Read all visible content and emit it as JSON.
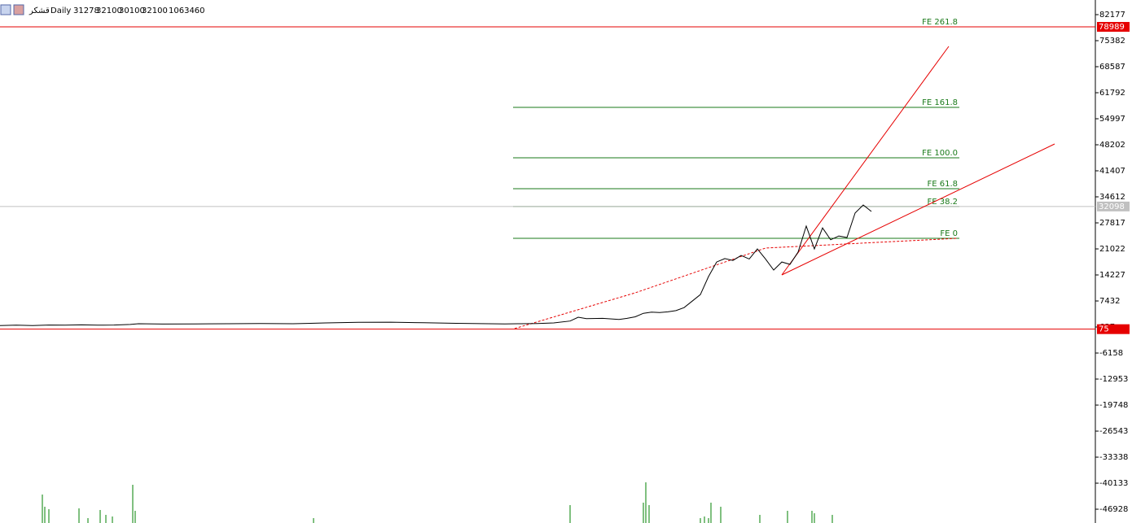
{
  "chart_data": {
    "type": "line",
    "symbol": "قشکر",
    "timeframe": "Daily",
    "ohlc": [
      31278,
      32100,
      30100,
      32100
    ],
    "tick_volume": 1063460,
    "color": "#000000",
    "xlim": [
      0,
      134.5
    ],
    "ylim": [
      -50530,
      85999
    ],
    "yticks": [
      82177,
      75382,
      68587,
      61792,
      54997,
      48202,
      41407,
      34612,
      27817,
      21022,
      14227,
      7432,
      637,
      -6158,
      -12953,
      -19748,
      -26543,
      -33338,
      -40133,
      -46928
    ],
    "x": [
      0,
      2,
      4,
      6,
      8,
      10,
      12,
      14,
      16,
      17,
      20,
      24,
      28,
      32,
      36,
      40,
      44,
      48,
      52,
      56,
      60,
      62,
      64,
      66,
      68,
      70,
      71,
      72,
      74,
      76,
      77,
      78,
      79,
      80,
      81,
      82,
      83,
      84,
      85,
      86,
      87,
      88,
      89,
      90,
      91,
      92,
      93,
      94,
      95,
      96,
      97,
      98,
      99,
      100,
      101,
      102,
      103,
      104,
      105,
      106,
      107
    ],
    "values": [
      1000,
      1100,
      1000,
      1150,
      1100,
      1200,
      1100,
      1150,
      1300,
      1500,
      1400,
      1450,
      1500,
      1550,
      1500,
      1700,
      1850,
      1900,
      1750,
      1600,
      1500,
      1450,
      1500,
      1550,
      1700,
      2200,
      3200,
      2800,
      2900,
      2600,
      2900,
      3300,
      4200,
      4500,
      4400,
      4600,
      4900,
      5700,
      7400,
      9100,
      13800,
      17600,
      18500,
      18000,
      19300,
      18400,
      21000,
      18400,
      15500,
      17600,
      17000,
      20200,
      27000,
      21000,
      26500,
      23400,
      24400,
      24000,
      30400,
      32500,
      30800
    ],
    "hlines": [
      {
        "value": 78989,
        "color": "#e60000"
      },
      {
        "value": 32098,
        "color": "#c0c0c0"
      },
      {
        "value": 75,
        "color": "#e60000"
      }
    ],
    "fibo": [
      {
        "label": "FE 261.8",
        "value": 78989
      },
      {
        "label": "FE 161.8",
        "value": 57969
      },
      {
        "label": "FE 100.0",
        "value": 44804
      },
      {
        "label": "FE 61.8",
        "value": 36735
      },
      {
        "label": "FE 38.2",
        "value": 32100
      },
      {
        "label": "FE 0",
        "value": 23782
      }
    ],
    "fibo_x": [
      63,
      117.8
    ],
    "fibo_color": "#1a7a1a",
    "trendlines": [
      {
        "x": [
          96,
          116.5
        ],
        "y": [
          14241,
          73897
        ],
        "color": "#e60000",
        "dashed": false
      },
      {
        "x": [
          96,
          129.5
        ],
        "y": [
          14241,
          48420
        ],
        "color": "#e60000",
        "dashed": false
      },
      {
        "x": [
          63.2,
          78,
          94,
          117.5
        ],
        "y": [
          230,
          9570,
          21246,
          23792
        ],
        "color": "#e60000",
        "dashed": true
      }
    ],
    "volume": {
      "color": "#008000",
      "x": [
        5.2,
        5.5,
        6,
        9.7,
        10.8,
        12.3,
        13,
        13.8,
        16.3,
        16.6,
        38.5,
        70,
        79,
        79.3,
        79.7,
        86,
        86.5,
        87,
        87.3,
        88.5,
        93.3,
        96.7,
        99.7,
        100,
        102.2
      ],
      "values": [
        35,
        20,
        17,
        18,
        6,
        16,
        10,
        8,
        47,
        15,
        6,
        22,
        25,
        50,
        22,
        6,
        8,
        6,
        25,
        20,
        10,
        15,
        15,
        12,
        10
      ]
    }
  }
}
